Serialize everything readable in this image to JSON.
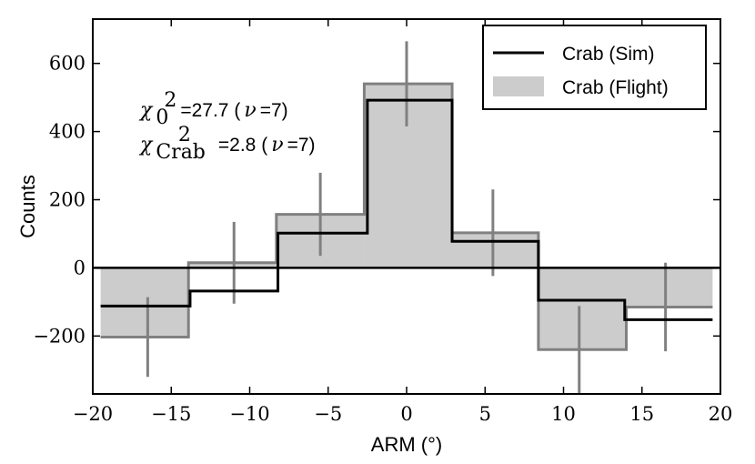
{
  "chart_data": {
    "type": "step-histogram",
    "xlabel": "ARM (°)",
    "ylabel": "Counts",
    "xlim": [
      -20,
      20
    ],
    "ylim": [
      -370,
      730
    ],
    "xticks": [
      -20,
      -15,
      -10,
      -5,
      0,
      5,
      10,
      15,
      20
    ],
    "xtick_labels": [
      "−20",
      "−15",
      "−10",
      "−5",
      "0",
      "5",
      "10",
      "15",
      "20"
    ],
    "yticks": [
      -200,
      0,
      200,
      400,
      600
    ],
    "ytick_labels": [
      "−200",
      "0",
      "200",
      "400",
      "600"
    ],
    "bin_edges": [
      -19.5,
      -13.9,
      -8.3,
      -2.7,
      2.9,
      8.4,
      14.0,
      19.5
    ],
    "series": [
      {
        "name": "Crab (Flight)",
        "style": "filled-step",
        "fill_color": "#cccccc",
        "edge_color": "#808080",
        "values": [
          -203,
          15,
          157,
          540,
          103,
          -240,
          -115
        ],
        "errors": [
          117,
          120,
          122,
          125,
          127,
          128,
          130
        ],
        "error_x": [
          -16.5,
          -11.0,
          -5.5,
          0.0,
          5.5,
          11.0,
          16.5
        ]
      },
      {
        "name": "Crab (Sim)",
        "style": "step-line",
        "line_color": "#000000",
        "values_by_edge": [
          {
            "x0": -19.5,
            "x1": -13.8,
            "y": -112
          },
          {
            "x0": -13.8,
            "x1": -11.5,
            "y": -68
          },
          {
            "x0": -11.5,
            "x1": -8.2,
            "y": -68
          },
          {
            "x0": -8.2,
            "x1": -2.5,
            "y": 102
          },
          {
            "x0": -2.5,
            "x1": 2.9,
            "y": 492
          },
          {
            "x0": 2.9,
            "x1": 8.4,
            "y": 78
          },
          {
            "x0": 8.4,
            "x1": 13.9,
            "y": -95
          },
          {
            "x0": 13.9,
            "x1": 19.5,
            "y": -152
          }
        ]
      }
    ],
    "zero_line": 0,
    "legend": {
      "position": "top-right",
      "entries": [
        "Crab (Sim)",
        "Crab (Flight)"
      ]
    },
    "annotations": {
      "chi0_symbol": "χ",
      "chi0_sub": "0",
      "chi0_sup": "2",
      "chi0_value": "=27.7 (",
      "chi0_nu": "ν",
      "chi0_dof": "=7)",
      "chicrab_symbol": "χ",
      "chicrab_sub": "Crab",
      "chicrab_sup": "2",
      "chicrab_value": "=2.8 (",
      "chicrab_nu": "ν",
      "chicrab_dof": "=7)"
    }
  }
}
